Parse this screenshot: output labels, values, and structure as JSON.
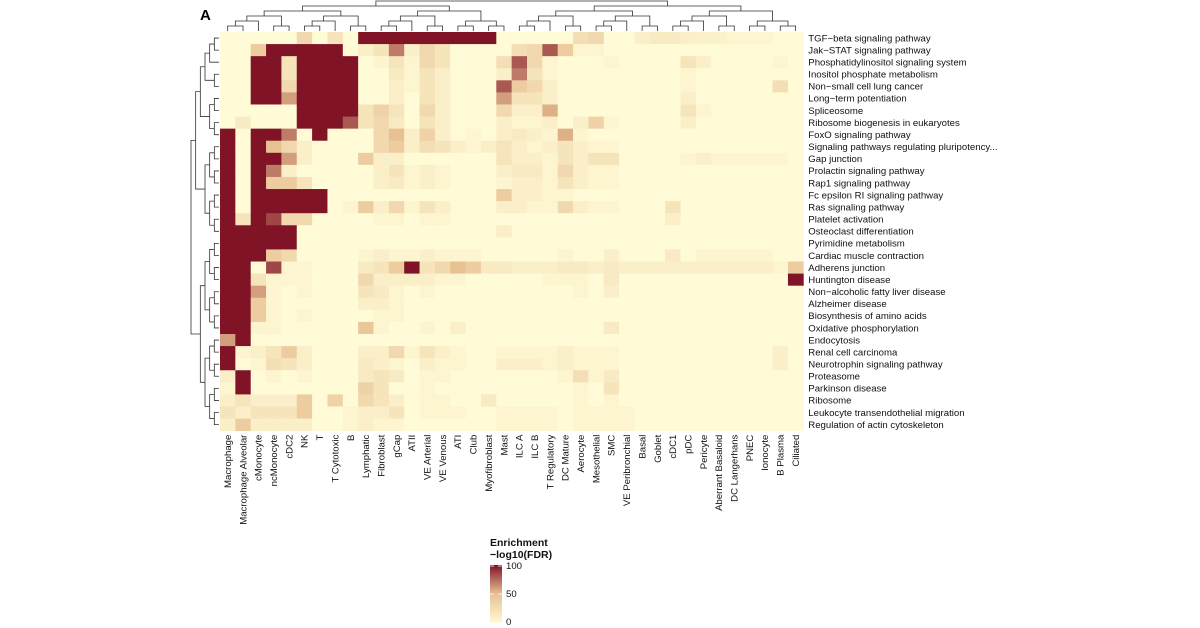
{
  "panel_label": "A",
  "colors": {
    "low": "#fffbd6",
    "mid": "#e8c193",
    "high": "#801326"
  },
  "legend": {
    "title_line1": "Enrichment",
    "title_line2": "−log10(FDR)",
    "ticks": [
      "100",
      "50",
      "0"
    ]
  },
  "chart_data": {
    "type": "heatmap",
    "title": "",
    "value_label": "Enrichment −log10(FDR)",
    "value_range": [
      0,
      100
    ],
    "columns": [
      "Macrophage",
      "Macrophage Alveolar",
      "cMonocyte",
      "ncMonocyte",
      "cDC2",
      "NK",
      "T",
      "T Cytotoxic",
      "B",
      "Lymphatic",
      "Fibroblast",
      "gCap",
      "ATII",
      "VE Arterial",
      "VE Venous",
      "ATI",
      "Club",
      "Myofibroblast",
      "Mast",
      "ILC A",
      "ILC B",
      "T Regulatory",
      "DC Mature",
      "Aerocyte",
      "Mesothelial",
      "SMC",
      "VE Peribronchial",
      "Basal",
      "Goblet",
      "cDC1",
      "pDC",
      "Pericyte",
      "Aberrant Basaloid",
      "DC Langerhans",
      "PNEC",
      "Ionocyte",
      "B Plasma",
      "Ciliated"
    ],
    "rows": [
      "TGF−beta signaling pathway",
      "Jak−STAT signaling pathway",
      "Phosphatidylinositol signaling system",
      "Inositol phosphate metabolism",
      "Non−small cell lung cancer",
      "Long−term potentiation",
      "Spliceosome",
      "Ribosome biogenesis in eukaryotes",
      "FoxO signaling pathway",
      "Signaling pathways regulating pluripotency...",
      "Gap junction",
      "Prolactin signaling pathway",
      "Rap1 signaling pathway",
      "Fc epsilon RI signaling pathway",
      "Ras signaling pathway",
      "Platelet activation",
      "Osteoclast differentiation",
      "Pyrimidine metabolism",
      "Cardiac muscle contraction",
      "Adherens junction",
      "Huntington disease",
      "Non−alcoholic fatty liver disease",
      "Alzheimer disease",
      "Biosynthesis of amino acids",
      "Oxidative phosphorylation",
      "Endocytosis",
      "Renal cell carcinoma",
      "Neurotrophin signaling pathway",
      "Proteasome",
      "Parkinson disease",
      "Ribosome",
      "Leukocyte transendothelial migration",
      "Regulation of actin cytoskeleton"
    ],
    "values": [
      [
        0,
        0,
        0,
        0,
        0,
        30,
        0,
        20,
        0,
        100,
        100,
        100,
        100,
        100,
        100,
        100,
        100,
        100,
        0,
        0,
        0,
        0,
        0,
        25,
        30,
        0,
        0,
        10,
        15,
        15,
        10,
        8,
        8,
        5,
        5,
        5,
        0,
        0
      ],
      [
        0,
        0,
        40,
        100,
        100,
        100,
        100,
        100,
        0,
        10,
        20,
        70,
        10,
        30,
        20,
        0,
        0,
        0,
        0,
        25,
        30,
        80,
        40,
        5,
        5,
        0,
        0,
        0,
        0,
        0,
        0,
        0,
        0,
        0,
        0,
        0,
        0,
        0
      ],
      [
        0,
        0,
        100,
        100,
        20,
        100,
        100,
        100,
        100,
        0,
        5,
        20,
        5,
        30,
        20,
        0,
        0,
        0,
        25,
        80,
        30,
        5,
        0,
        0,
        0,
        5,
        0,
        0,
        0,
        0,
        20,
        10,
        0,
        0,
        0,
        0,
        5,
        0
      ],
      [
        0,
        0,
        100,
        100,
        20,
        100,
        100,
        100,
        100,
        0,
        0,
        15,
        5,
        20,
        10,
        0,
        0,
        0,
        10,
        70,
        20,
        5,
        0,
        0,
        0,
        0,
        0,
        0,
        0,
        0,
        5,
        0,
        0,
        0,
        0,
        0,
        0,
        0
      ],
      [
        0,
        0,
        100,
        100,
        30,
        100,
        100,
        100,
        100,
        0,
        0,
        10,
        5,
        20,
        10,
        0,
        0,
        0,
        80,
        40,
        30,
        10,
        0,
        0,
        0,
        0,
        0,
        0,
        0,
        0,
        5,
        0,
        0,
        0,
        0,
        0,
        25,
        0
      ],
      [
        0,
        0,
        100,
        100,
        60,
        100,
        100,
        100,
        100,
        0,
        0,
        10,
        0,
        20,
        10,
        0,
        0,
        0,
        60,
        20,
        20,
        10,
        0,
        0,
        0,
        0,
        0,
        0,
        0,
        0,
        10,
        0,
        0,
        0,
        0,
        0,
        0,
        0
      ],
      [
        0,
        0,
        0,
        0,
        0,
        100,
        100,
        100,
        100,
        20,
        35,
        20,
        0,
        30,
        10,
        0,
        0,
        0,
        30,
        10,
        10,
        55,
        0,
        0,
        0,
        0,
        0,
        0,
        0,
        0,
        20,
        5,
        0,
        0,
        0,
        0,
        0,
        0
      ],
      [
        0,
        15,
        0,
        0,
        0,
        100,
        100,
        100,
        80,
        20,
        30,
        15,
        0,
        20,
        10,
        0,
        0,
        0,
        10,
        5,
        5,
        10,
        0,
        10,
        35,
        5,
        0,
        0,
        0,
        0,
        10,
        0,
        0,
        0,
        0,
        0,
        0,
        0
      ],
      [
        100,
        0,
        100,
        100,
        70,
        0,
        100,
        0,
        0,
        0,
        30,
        50,
        10,
        35,
        10,
        0,
        5,
        0,
        10,
        15,
        10,
        5,
        55,
        5,
        0,
        0,
        0,
        0,
        0,
        0,
        0,
        0,
        0,
        0,
        0,
        0,
        0,
        0
      ],
      [
        100,
        0,
        100,
        50,
        30,
        10,
        0,
        0,
        0,
        0,
        30,
        40,
        10,
        25,
        20,
        10,
        5,
        10,
        20,
        10,
        5,
        10,
        20,
        10,
        5,
        5,
        0,
        0,
        0,
        0,
        0,
        0,
        0,
        0,
        0,
        0,
        0,
        0
      ],
      [
        100,
        0,
        100,
        100,
        60,
        10,
        0,
        0,
        0,
        40,
        10,
        10,
        0,
        0,
        0,
        0,
        0,
        0,
        20,
        10,
        10,
        5,
        20,
        10,
        20,
        20,
        0,
        0,
        0,
        0,
        5,
        10,
        5,
        5,
        5,
        5,
        5,
        0
      ],
      [
        100,
        0,
        100,
        70,
        10,
        0,
        0,
        0,
        0,
        0,
        10,
        20,
        5,
        10,
        5,
        0,
        0,
        0,
        10,
        15,
        15,
        5,
        30,
        10,
        5,
        5,
        0,
        0,
        0,
        0,
        0,
        0,
        0,
        0,
        0,
        0,
        0,
        0
      ],
      [
        100,
        0,
        100,
        40,
        40,
        20,
        0,
        0,
        0,
        0,
        10,
        15,
        5,
        10,
        5,
        0,
        0,
        0,
        5,
        10,
        10,
        5,
        20,
        10,
        5,
        5,
        0,
        0,
        0,
        0,
        0,
        0,
        0,
        0,
        0,
        0,
        0,
        0
      ],
      [
        100,
        0,
        100,
        100,
        100,
        100,
        100,
        0,
        0,
        0,
        0,
        0,
        0,
        0,
        0,
        0,
        0,
        0,
        40,
        10,
        10,
        5,
        5,
        0,
        0,
        0,
        0,
        0,
        0,
        0,
        0,
        0,
        0,
        0,
        0,
        0,
        0,
        0
      ],
      [
        100,
        0,
        100,
        100,
        100,
        100,
        100,
        0,
        5,
        40,
        10,
        30,
        5,
        20,
        10,
        0,
        0,
        0,
        10,
        10,
        5,
        5,
        30,
        10,
        5,
        5,
        0,
        0,
        0,
        20,
        0,
        0,
        0,
        0,
        0,
        0,
        0,
        0
      ],
      [
        100,
        20,
        100,
        85,
        30,
        30,
        0,
        0,
        0,
        0,
        5,
        5,
        0,
        5,
        5,
        0,
        0,
        0,
        0,
        0,
        0,
        0,
        0,
        0,
        0,
        0,
        0,
        0,
        0,
        10,
        0,
        0,
        0,
        0,
        0,
        0,
        0,
        0
      ],
      [
        100,
        100,
        100,
        100,
        100,
        0,
        0,
        0,
        0,
        0,
        0,
        0,
        0,
        0,
        0,
        0,
        0,
        0,
        10,
        0,
        0,
        0,
        0,
        0,
        0,
        0,
        0,
        0,
        0,
        0,
        0,
        0,
        0,
        0,
        0,
        0,
        0,
        0
      ],
      [
        100,
        100,
        100,
        100,
        100,
        0,
        0,
        0,
        0,
        0,
        0,
        0,
        0,
        0,
        0,
        0,
        0,
        0,
        0,
        0,
        0,
        0,
        0,
        0,
        0,
        0,
        0,
        0,
        0,
        0,
        0,
        0,
        0,
        0,
        0,
        0,
        0,
        0
      ],
      [
        100,
        100,
        100,
        40,
        30,
        0,
        0,
        0,
        0,
        5,
        10,
        5,
        5,
        10,
        5,
        5,
        5,
        0,
        0,
        0,
        0,
        0,
        5,
        0,
        0,
        10,
        0,
        0,
        0,
        15,
        0,
        5,
        5,
        5,
        5,
        5,
        0,
        0
      ],
      [
        100,
        100,
        0,
        85,
        5,
        5,
        0,
        0,
        0,
        15,
        20,
        40,
        100,
        20,
        30,
        50,
        40,
        15,
        15,
        10,
        10,
        10,
        15,
        15,
        10,
        15,
        10,
        10,
        10,
        10,
        10,
        10,
        10,
        10,
        10,
        10,
        5,
        40
      ],
      [
        100,
        100,
        20,
        5,
        5,
        5,
        0,
        0,
        0,
        30,
        10,
        10,
        10,
        10,
        5,
        5,
        0,
        0,
        0,
        0,
        0,
        5,
        5,
        5,
        0,
        15,
        0,
        0,
        0,
        0,
        0,
        0,
        0,
        0,
        0,
        0,
        0,
        100
      ],
      [
        100,
        100,
        60,
        5,
        0,
        5,
        0,
        0,
        0,
        20,
        15,
        5,
        0,
        5,
        0,
        0,
        0,
        0,
        0,
        0,
        0,
        0,
        0,
        5,
        0,
        10,
        0,
        0,
        0,
        0,
        0,
        0,
        0,
        0,
        0,
        0,
        0,
        0
      ],
      [
        100,
        100,
        40,
        5,
        0,
        0,
        0,
        0,
        0,
        10,
        10,
        5,
        0,
        0,
        0,
        0,
        0,
        0,
        0,
        0,
        0,
        0,
        0,
        0,
        0,
        0,
        0,
        0,
        0,
        0,
        0,
        0,
        0,
        0,
        0,
        0,
        0,
        0
      ],
      [
        100,
        100,
        40,
        5,
        0,
        5,
        0,
        0,
        0,
        0,
        5,
        5,
        0,
        0,
        0,
        0,
        0,
        0,
        0,
        0,
        0,
        0,
        0,
        0,
        0,
        0,
        0,
        0,
        0,
        0,
        0,
        0,
        0,
        0,
        0,
        0,
        0,
        0
      ],
      [
        100,
        100,
        5,
        5,
        0,
        0,
        0,
        0,
        0,
        45,
        5,
        0,
        0,
        5,
        0,
        10,
        0,
        0,
        0,
        0,
        0,
        0,
        0,
        0,
        0,
        15,
        0,
        0,
        0,
        0,
        0,
        0,
        0,
        0,
        0,
        0,
        0,
        0
      ],
      [
        60,
        100,
        0,
        0,
        0,
        0,
        0,
        0,
        0,
        0,
        0,
        0,
        0,
        0,
        0,
        0,
        0,
        0,
        0,
        0,
        0,
        0,
        0,
        0,
        0,
        0,
        0,
        0,
        0,
        0,
        0,
        0,
        0,
        0,
        0,
        0,
        0,
        0
      ],
      [
        100,
        5,
        10,
        20,
        40,
        10,
        0,
        0,
        0,
        10,
        10,
        30,
        5,
        20,
        10,
        5,
        0,
        0,
        5,
        5,
        5,
        5,
        10,
        5,
        5,
        5,
        0,
        0,
        0,
        0,
        0,
        0,
        0,
        0,
        0,
        0,
        10,
        0
      ],
      [
        100,
        0,
        5,
        25,
        20,
        10,
        0,
        0,
        0,
        15,
        10,
        5,
        0,
        10,
        5,
        5,
        0,
        0,
        10,
        10,
        10,
        5,
        10,
        5,
        5,
        5,
        0,
        0,
        0,
        0,
        0,
        0,
        0,
        0,
        0,
        0,
        10,
        0
      ],
      [
        10,
        100,
        0,
        5,
        0,
        5,
        0,
        0,
        0,
        15,
        20,
        15,
        0,
        5,
        5,
        0,
        0,
        0,
        0,
        0,
        0,
        0,
        5,
        25,
        5,
        15,
        0,
        0,
        0,
        0,
        0,
        0,
        0,
        0,
        0,
        0,
        0,
        0
      ],
      [
        5,
        100,
        0,
        0,
        0,
        0,
        0,
        0,
        0,
        35,
        20,
        0,
        0,
        5,
        0,
        0,
        0,
        0,
        0,
        0,
        0,
        0,
        0,
        5,
        0,
        20,
        0,
        0,
        0,
        0,
        0,
        0,
        0,
        0,
        0,
        0,
        0,
        0
      ],
      [
        10,
        20,
        10,
        10,
        10,
        40,
        0,
        35,
        0,
        30,
        20,
        10,
        0,
        5,
        5,
        0,
        0,
        15,
        0,
        0,
        0,
        0,
        0,
        5,
        0,
        5,
        0,
        0,
        0,
        0,
        0,
        0,
        0,
        0,
        0,
        0,
        0,
        0
      ],
      [
        20,
        10,
        20,
        20,
        20,
        40,
        0,
        0,
        5,
        10,
        10,
        20,
        0,
        5,
        5,
        5,
        0,
        0,
        5,
        5,
        5,
        5,
        0,
        5,
        5,
        5,
        5,
        0,
        0,
        0,
        0,
        0,
        0,
        0,
        0,
        0,
        0,
        0
      ],
      [
        10,
        40,
        10,
        10,
        10,
        10,
        0,
        0,
        5,
        10,
        5,
        5,
        0,
        0,
        0,
        0,
        0,
        0,
        5,
        5,
        5,
        5,
        0,
        5,
        5,
        5,
        5,
        0,
        0,
        0,
        0,
        0,
        0,
        0,
        0,
        0,
        0,
        0
      ]
    ]
  }
}
